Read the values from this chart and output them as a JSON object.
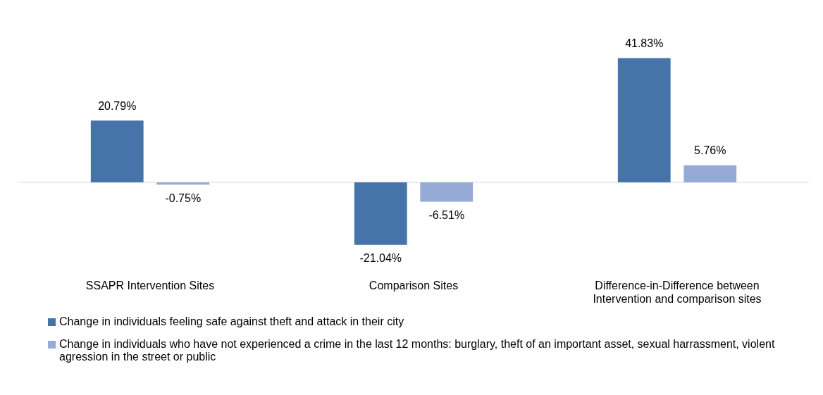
{
  "chart_data": {
    "type": "bar",
    "relative": false,
    "categories": [
      "SSAPR Intervention Sites",
      "Comparison Sites",
      "Difference-in-Difference between Intervention and comparison sites"
    ],
    "series": [
      {
        "name": "Change in individuals feeling safe against theft and attack in their city",
        "color": "#4674a9",
        "values": [
          20.79,
          -21.04,
          41.83
        ],
        "value_labels": [
          "20.79%",
          "-21.04%",
          "41.83%"
        ]
      },
      {
        "name": "Change in individuals who have not experienced a crime in the last 12 months: burglary, theft of an important asset,  sexual harrassment, violent agression in the street or public",
        "color": "#95abd5",
        "values": [
          -0.75,
          -6.51,
          5.76
        ],
        "value_labels": [
          "-0.75%",
          "-6.51%",
          "5.76%"
        ]
      }
    ],
    "legend": "bottom",
    "grid": false
  }
}
